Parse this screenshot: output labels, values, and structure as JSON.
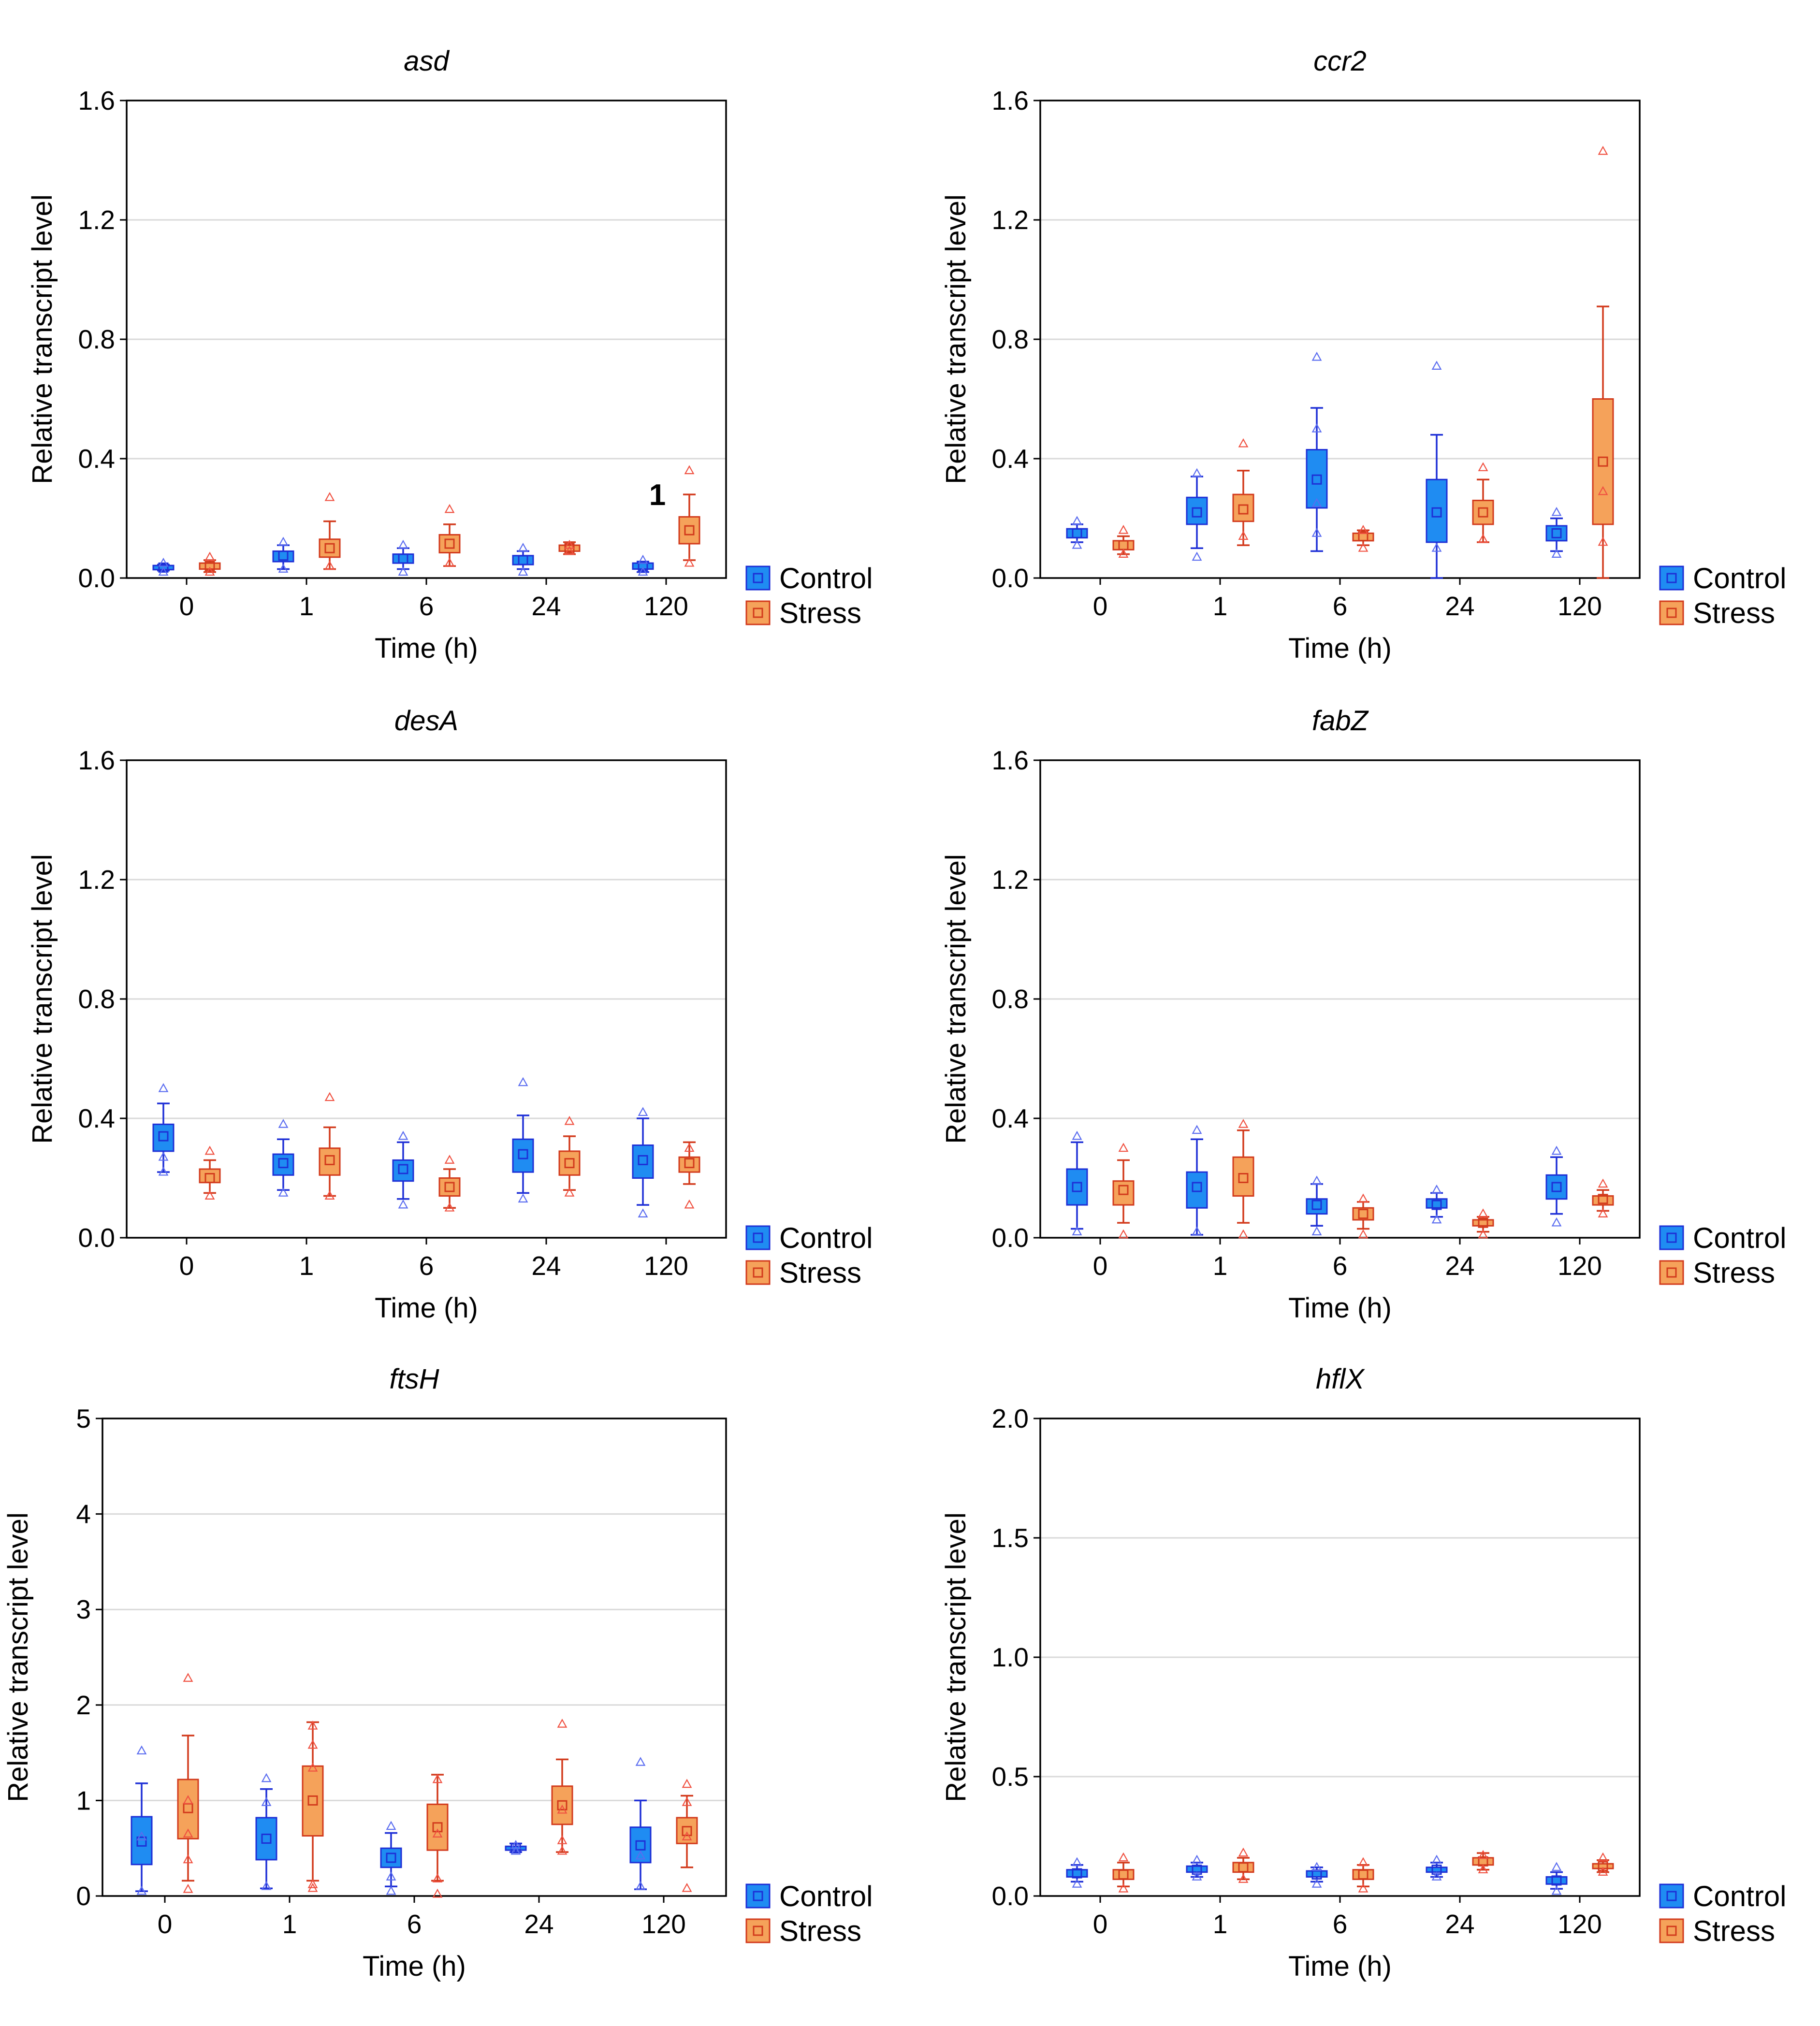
{
  "figure": {
    "legend": [
      "Control",
      "Stress"
    ],
    "colors": {
      "control_fill": "#1f8cf2",
      "control_stroke": "#1e2fd6",
      "control_point": "#5a6cf0",
      "stress_fill": "#f5a25a",
      "stress_stroke": "#d23a1c",
      "stress_point": "#f05040",
      "grid": "#d9d9d9"
    }
  },
  "chart_data": [
    {
      "type": "box",
      "title": "asd",
      "xlabel": "Time (h)",
      "ylabel": "Relative transcript level",
      "categories": [
        "0",
        "1",
        "6",
        "24",
        "120"
      ],
      "ylim": [
        0,
        1.6
      ],
      "yticks": [
        "0.0",
        "0.4",
        "0.8",
        "1.2",
        "1.6"
      ],
      "grid": true,
      "legend_position": "outside-bottom-right",
      "annotation": "1",
      "annotation_at": {
        "category": "120",
        "value": 0.28
      },
      "series": [
        {
          "name": "Control",
          "boxes": [
            {
              "mean": 0.035,
              "q1": 0.028,
              "q3": 0.042,
              "wlo": 0.025,
              "whi": 0.045,
              "points": [
                0.02,
                0.05
              ]
            },
            {
              "mean": 0.075,
              "q1": 0.055,
              "q3": 0.09,
              "wlo": 0.03,
              "whi": 0.11,
              "points": [
                0.12,
                0.03
              ]
            },
            {
              "mean": 0.065,
              "q1": 0.05,
              "q3": 0.08,
              "wlo": 0.03,
              "whi": 0.1,
              "points": [
                0.11,
                0.02
              ]
            },
            {
              "mean": 0.06,
              "q1": 0.045,
              "q3": 0.075,
              "wlo": 0.03,
              "whi": 0.09,
              "points": [
                0.1,
                0.02
              ]
            },
            {
              "mean": 0.04,
              "q1": 0.03,
              "q3": 0.05,
              "wlo": 0.02,
              "whi": 0.055,
              "points": [
                0.06,
                0.02
              ]
            }
          ]
        },
        {
          "name": "Stress",
          "boxes": [
            {
              "mean": 0.04,
              "q1": 0.03,
              "q3": 0.05,
              "wlo": 0.02,
              "whi": 0.06,
              "points": [
                0.07,
                0.02
              ]
            },
            {
              "mean": 0.1,
              "q1": 0.07,
              "q3": 0.13,
              "wlo": 0.03,
              "whi": 0.19,
              "points": [
                0.27,
                0.04
              ]
            },
            {
              "mean": 0.115,
              "q1": 0.085,
              "q3": 0.145,
              "wlo": 0.04,
              "whi": 0.18,
              "points": [
                0.23,
                0.05
              ]
            },
            {
              "mean": 0.1,
              "q1": 0.09,
              "q3": 0.11,
              "wlo": 0.08,
              "whi": 0.12,
              "points": [
                0.11,
                0.09
              ]
            },
            {
              "mean": 0.16,
              "q1": 0.115,
              "q3": 0.205,
              "wlo": 0.06,
              "whi": 0.28,
              "points": [
                0.36,
                0.05
              ]
            }
          ]
        }
      ]
    },
    {
      "type": "box",
      "title": "ccr2",
      "xlabel": "Time (h)",
      "ylabel": "Relative transcript level",
      "categories": [
        "0",
        "1",
        "6",
        "24",
        "120"
      ],
      "ylim": [
        0,
        1.6
      ],
      "yticks": [
        "0.0",
        "0.4",
        "0.8",
        "1.2",
        "1.6"
      ],
      "grid": true,
      "legend_position": "outside-bottom-right",
      "series": [
        {
          "name": "Control",
          "boxes": [
            {
              "mean": 0.15,
              "q1": 0.135,
              "q3": 0.165,
              "wlo": 0.12,
              "whi": 0.18,
              "points": [
                0.19,
                0.11
              ]
            },
            {
              "mean": 0.22,
              "q1": 0.18,
              "q3": 0.27,
              "wlo": 0.1,
              "whi": 0.34,
              "points": [
                0.35,
                0.07
              ]
            },
            {
              "mean": 0.33,
              "q1": 0.235,
              "q3": 0.43,
              "wlo": 0.09,
              "whi": 0.57,
              "points": [
                0.74,
                0.5,
                0.25,
                0.15
              ]
            },
            {
              "mean": 0.22,
              "q1": 0.12,
              "q3": 0.33,
              "wlo": 0.0,
              "whi": 0.48,
              "points": [
                0.71,
                0.1
              ]
            },
            {
              "mean": 0.15,
              "q1": 0.125,
              "q3": 0.175,
              "wlo": 0.09,
              "whi": 0.2,
              "points": [
                0.22,
                0.08
              ]
            }
          ]
        },
        {
          "name": "Stress",
          "boxes": [
            {
              "mean": 0.11,
              "q1": 0.095,
              "q3": 0.125,
              "wlo": 0.08,
              "whi": 0.14,
              "points": [
                0.16,
                0.08
              ]
            },
            {
              "mean": 0.23,
              "q1": 0.19,
              "q3": 0.28,
              "wlo": 0.11,
              "whi": 0.36,
              "points": [
                0.45,
                0.14
              ]
            },
            {
              "mean": 0.14,
              "q1": 0.125,
              "q3": 0.15,
              "wlo": 0.11,
              "whi": 0.16,
              "points": [
                0.16,
                0.1
              ]
            },
            {
              "mean": 0.22,
              "q1": 0.18,
              "q3": 0.26,
              "wlo": 0.12,
              "whi": 0.33,
              "points": [
                0.37,
                0.13
              ]
            },
            {
              "mean": 0.39,
              "q1": 0.18,
              "q3": 0.6,
              "wlo": 0.0,
              "whi": 0.91,
              "points": [
                1.43,
                0.29,
                0.12
              ]
            }
          ]
        }
      ]
    },
    {
      "type": "box",
      "title": "desA",
      "xlabel": "Time (h)",
      "ylabel": "Relative transcript level",
      "categories": [
        "0",
        "1",
        "6",
        "24",
        "120"
      ],
      "ylim": [
        0,
        1.6
      ],
      "yticks": [
        "0.0",
        "0.4",
        "0.8",
        "1.2",
        "1.6"
      ],
      "grid": true,
      "legend_position": "outside-bottom-right",
      "series": [
        {
          "name": "Control",
          "boxes": [
            {
              "mean": 0.34,
              "q1": 0.29,
              "q3": 0.38,
              "wlo": 0.22,
              "whi": 0.45,
              "points": [
                0.5,
                0.27,
                0.22
              ]
            },
            {
              "mean": 0.25,
              "q1": 0.21,
              "q3": 0.28,
              "wlo": 0.16,
              "whi": 0.33,
              "points": [
                0.38,
                0.15
              ]
            },
            {
              "mean": 0.23,
              "q1": 0.19,
              "q3": 0.26,
              "wlo": 0.13,
              "whi": 0.32,
              "points": [
                0.34,
                0.11
              ]
            },
            {
              "mean": 0.28,
              "q1": 0.22,
              "q3": 0.33,
              "wlo": 0.15,
              "whi": 0.41,
              "points": [
                0.52,
                0.13
              ]
            },
            {
              "mean": 0.26,
              "q1": 0.2,
              "q3": 0.31,
              "wlo": 0.11,
              "whi": 0.4,
              "points": [
                0.42,
                0.08
              ]
            }
          ]
        },
        {
          "name": "Stress",
          "boxes": [
            {
              "mean": 0.2,
              "q1": 0.185,
              "q3": 0.23,
              "wlo": 0.15,
              "whi": 0.26,
              "points": [
                0.29,
                0.14
              ]
            },
            {
              "mean": 0.26,
              "q1": 0.21,
              "q3": 0.3,
              "wlo": 0.14,
              "whi": 0.37,
              "points": [
                0.47,
                0.14
              ]
            },
            {
              "mean": 0.17,
              "q1": 0.14,
              "q3": 0.2,
              "wlo": 0.1,
              "whi": 0.23,
              "points": [
                0.26,
                0.1
              ]
            },
            {
              "mean": 0.25,
              "q1": 0.21,
              "q3": 0.29,
              "wlo": 0.16,
              "whi": 0.34,
              "points": [
                0.39,
                0.15
              ]
            },
            {
              "mean": 0.25,
              "q1": 0.22,
              "q3": 0.27,
              "wlo": 0.18,
              "whi": 0.32,
              "points": [
                0.3,
                0.11
              ]
            }
          ]
        }
      ]
    },
    {
      "type": "box",
      "title": "fabZ",
      "xlabel": "Time (h)",
      "ylabel": "Relative transcript level",
      "categories": [
        "0",
        "1",
        "6",
        "24",
        "120"
      ],
      "ylim": [
        0,
        1.6
      ],
      "yticks": [
        "0.0",
        "0.4",
        "0.8",
        "1.2",
        "1.6"
      ],
      "grid": true,
      "legend_position": "outside-bottom-right",
      "series": [
        {
          "name": "Control",
          "boxes": [
            {
              "mean": 0.17,
              "q1": 0.11,
              "q3": 0.23,
              "wlo": 0.03,
              "whi": 0.32,
              "points": [
                0.34,
                0.02
              ]
            },
            {
              "mean": 0.17,
              "q1": 0.1,
              "q3": 0.22,
              "wlo": 0.01,
              "whi": 0.33,
              "points": [
                0.36,
                0.02
              ]
            },
            {
              "mean": 0.11,
              "q1": 0.08,
              "q3": 0.13,
              "wlo": 0.04,
              "whi": 0.18,
              "points": [
                0.19,
                0.02
              ]
            },
            {
              "mean": 0.11,
              "q1": 0.1,
              "q3": 0.13,
              "wlo": 0.07,
              "whi": 0.15,
              "points": [
                0.16,
                0.06
              ]
            },
            {
              "mean": 0.17,
              "q1": 0.13,
              "q3": 0.21,
              "wlo": 0.08,
              "whi": 0.27,
              "points": [
                0.29,
                0.05
              ]
            }
          ]
        },
        {
          "name": "Stress",
          "boxes": [
            {
              "mean": 0.16,
              "q1": 0.11,
              "q3": 0.19,
              "wlo": 0.05,
              "whi": 0.26,
              "points": [
                0.3,
                0.01
              ]
            },
            {
              "mean": 0.2,
              "q1": 0.14,
              "q3": 0.27,
              "wlo": 0.05,
              "whi": 0.36,
              "points": [
                0.38,
                0.01
              ]
            },
            {
              "mean": 0.08,
              "q1": 0.06,
              "q3": 0.1,
              "wlo": 0.03,
              "whi": 0.12,
              "points": [
                0.13,
                0.01
              ]
            },
            {
              "mean": 0.05,
              "q1": 0.04,
              "q3": 0.06,
              "wlo": 0.02,
              "whi": 0.07,
              "points": [
                0.08,
                0.01
              ]
            },
            {
              "mean": 0.13,
              "q1": 0.11,
              "q3": 0.14,
              "wlo": 0.09,
              "whi": 0.16,
              "points": [
                0.18,
                0.08
              ]
            }
          ]
        }
      ]
    },
    {
      "type": "box",
      "title": "ftsH",
      "xlabel": "Time (h)",
      "ylabel": "Relative transcript level",
      "categories": [
        "0",
        "1",
        "6",
        "24",
        "120"
      ],
      "ylim": [
        0,
        5
      ],
      "yticks": [
        "0",
        "1",
        "2",
        "3",
        "4",
        "5"
      ],
      "grid": true,
      "legend_position": "outside-bottom-right",
      "series": [
        {
          "name": "Control",
          "boxes": [
            {
              "mean": 0.57,
              "q1": 0.33,
              "q3": 0.83,
              "wlo": 0.05,
              "whi": 1.18,
              "points": [
                1.52,
                0.62,
                0.05
              ]
            },
            {
              "mean": 0.6,
              "q1": 0.38,
              "q3": 0.82,
              "wlo": 0.08,
              "whi": 1.12,
              "points": [
                1.23,
                0.98,
                0.1
              ]
            },
            {
              "mean": 0.4,
              "q1": 0.3,
              "q3": 0.5,
              "wlo": 0.1,
              "whi": 0.66,
              "points": [
                0.73,
                0.2,
                0.05
              ]
            },
            {
              "mean": 0.5,
              "q1": 0.48,
              "q3": 0.52,
              "wlo": 0.46,
              "whi": 0.55,
              "points": [
                0.53,
                0.47
              ]
            },
            {
              "mean": 0.53,
              "q1": 0.35,
              "q3": 0.72,
              "wlo": 0.07,
              "whi": 1.0,
              "points": [
                1.4,
                0.42,
                0.1
              ]
            }
          ]
        },
        {
          "name": "Stress",
          "boxes": [
            {
              "mean": 0.92,
              "q1": 0.6,
              "q3": 1.22,
              "wlo": 0.16,
              "whi": 1.68,
              "points": [
                2.28,
                1.0,
                0.65,
                0.38,
                0.07
              ]
            },
            {
              "mean": 1.0,
              "q1": 0.63,
              "q3": 1.36,
              "wlo": 0.16,
              "whi": 1.82,
              "points": [
                1.78,
                1.58,
                1.34,
                0.12,
                0.08
              ]
            },
            {
              "mean": 0.72,
              "q1": 0.48,
              "q3": 0.96,
              "wlo": 0.16,
              "whi": 1.27,
              "points": [
                1.22,
                0.65,
                0.18,
                0.02
              ]
            },
            {
              "mean": 0.95,
              "q1": 0.75,
              "q3": 1.15,
              "wlo": 0.46,
              "whi": 1.43,
              "points": [
                1.8,
                0.9,
                0.58,
                0.47
              ]
            },
            {
              "mean": 0.68,
              "q1": 0.55,
              "q3": 0.82,
              "wlo": 0.3,
              "whi": 1.05,
              "points": [
                1.17,
                0.98,
                0.62,
                0.08
              ]
            }
          ]
        }
      ]
    },
    {
      "type": "box",
      "title": "hflX",
      "xlabel": "Time (h)",
      "ylabel": "Relative transcript level",
      "categories": [
        "0",
        "1",
        "6",
        "24",
        "120"
      ],
      "ylim": [
        0,
        2
      ],
      "yticks": [
        "0.0",
        "0.5",
        "1.0",
        "1.5",
        "2.0"
      ],
      "grid": true,
      "legend_position": "outside-bottom-right",
      "series": [
        {
          "name": "Control",
          "boxes": [
            {
              "mean": 0.095,
              "q1": 0.08,
              "q3": 0.11,
              "wlo": 0.06,
              "whi": 0.13,
              "points": [
                0.14,
                0.05
              ]
            },
            {
              "mean": 0.11,
              "q1": 0.1,
              "q3": 0.125,
              "wlo": 0.08,
              "whi": 0.14,
              "points": [
                0.15,
                0.08
              ]
            },
            {
              "mean": 0.09,
              "q1": 0.08,
              "q3": 0.105,
              "wlo": 0.06,
              "whi": 0.12,
              "points": [
                0.12,
                0.05
              ]
            },
            {
              "mean": 0.11,
              "q1": 0.1,
              "q3": 0.12,
              "wlo": 0.08,
              "whi": 0.14,
              "points": [
                0.15,
                0.08
              ]
            },
            {
              "mean": 0.065,
              "q1": 0.05,
              "q3": 0.08,
              "wlo": 0.03,
              "whi": 0.1,
              "points": [
                0.12,
                0.02
              ]
            }
          ]
        },
        {
          "name": "Stress",
          "boxes": [
            {
              "mean": 0.09,
              "q1": 0.07,
              "q3": 0.11,
              "wlo": 0.04,
              "whi": 0.14,
              "points": [
                0.16,
                0.03
              ]
            },
            {
              "mean": 0.12,
              "q1": 0.1,
              "q3": 0.14,
              "wlo": 0.07,
              "whi": 0.16,
              "points": [
                0.18,
                0.07
              ]
            },
            {
              "mean": 0.09,
              "q1": 0.07,
              "q3": 0.11,
              "wlo": 0.04,
              "whi": 0.13,
              "points": [
                0.14,
                0.03
              ]
            },
            {
              "mean": 0.145,
              "q1": 0.13,
              "q3": 0.16,
              "wlo": 0.11,
              "whi": 0.18,
              "points": [
                0.17,
                0.11
              ]
            },
            {
              "mean": 0.125,
              "q1": 0.115,
              "q3": 0.135,
              "wlo": 0.1,
              "whi": 0.15,
              "points": [
                0.16,
                0.1
              ]
            }
          ]
        }
      ]
    }
  ]
}
